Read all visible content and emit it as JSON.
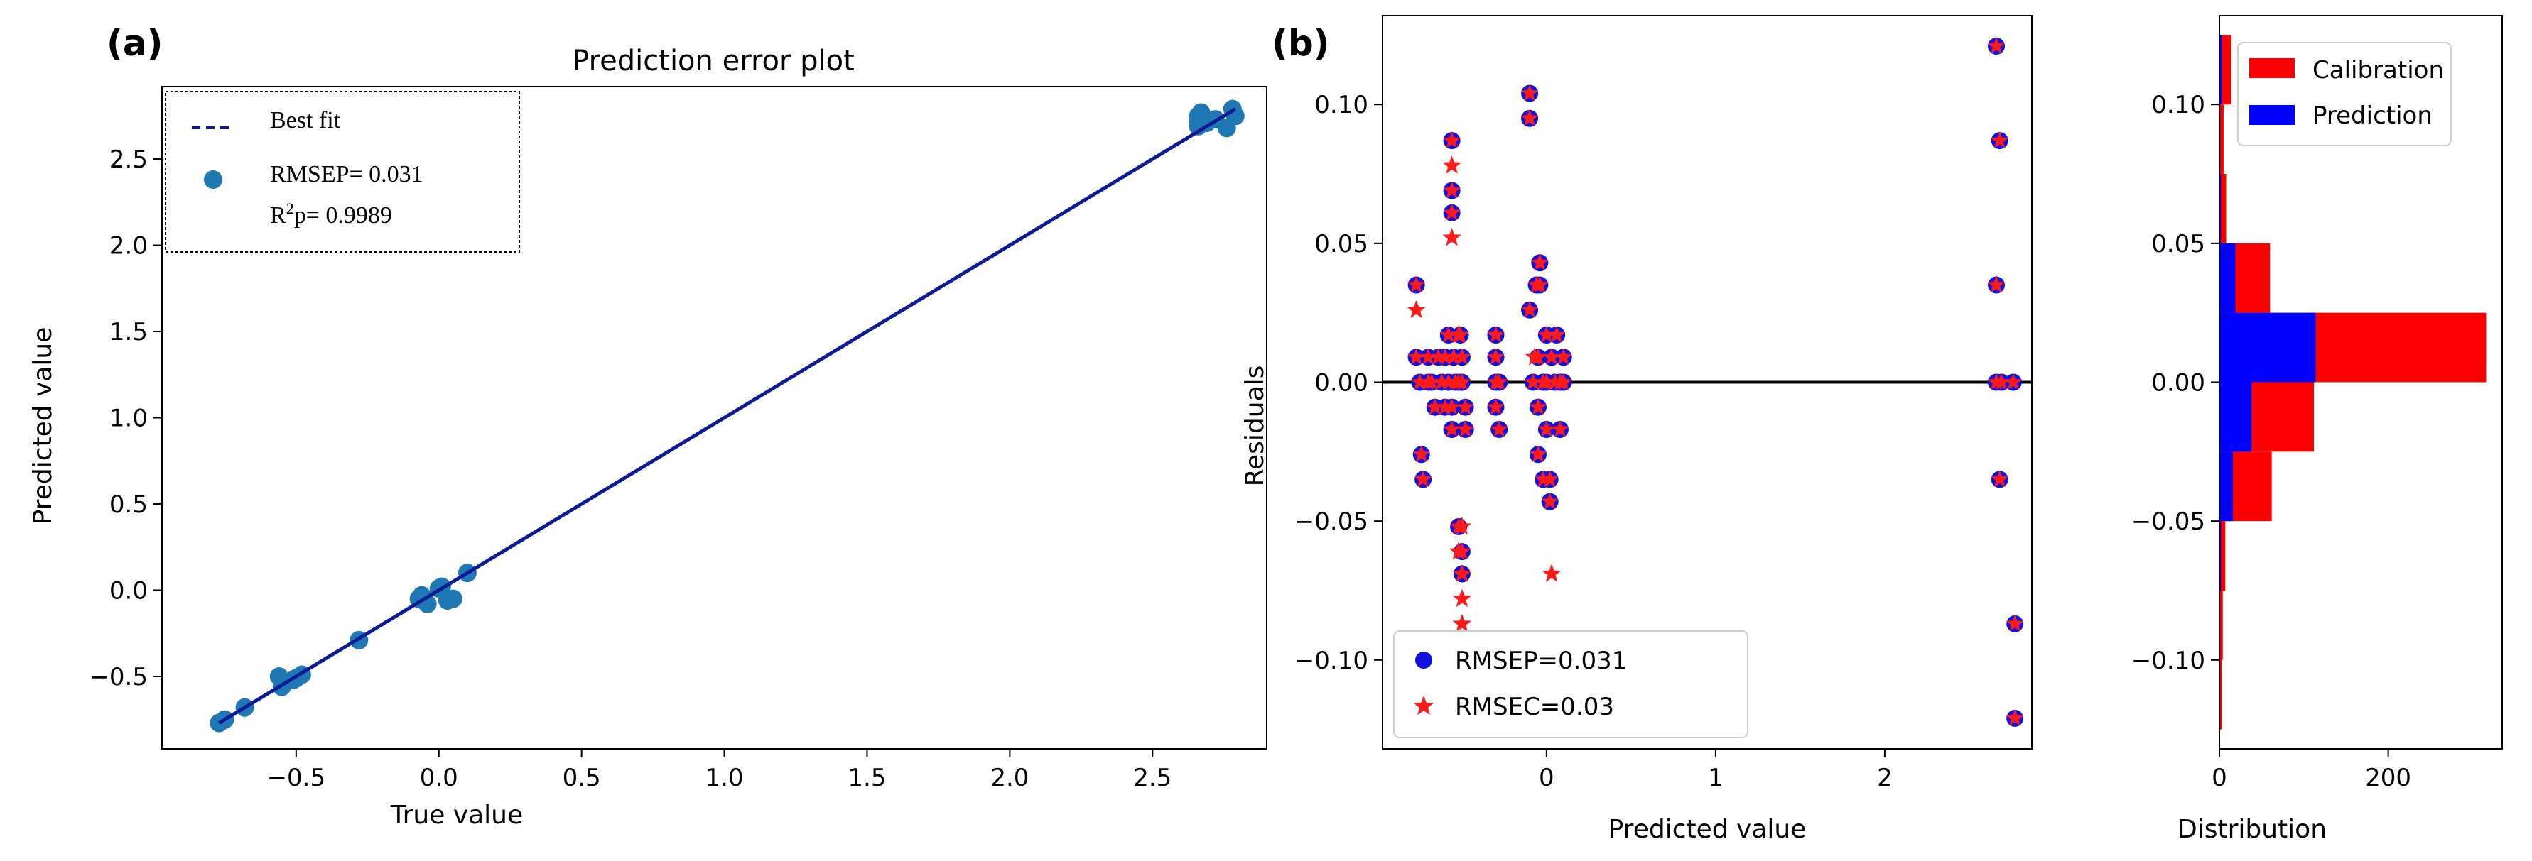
{
  "colors": {
    "fit_line": "#0d1a96",
    "scatter_a": "#1f77b4",
    "circle_b": "#1010e0",
    "star_b": "#ff1a1a",
    "calibration": "#ff0000",
    "prediction": "#0000ff"
  },
  "chart_data": [
    {
      "id": "a",
      "panel_label": "(a)",
      "type": "scatter",
      "title": "Prediction error plot",
      "xlabel": "True value",
      "ylabel": "Predicted value",
      "xlim": [
        -0.97,
        2.9
      ],
      "ylim": [
        -0.92,
        2.92
      ],
      "xticks": [
        -0.5,
        0.0,
        0.5,
        1.0,
        1.5,
        2.0,
        2.5
      ],
      "xtick_labels": [
        "−0.5",
        "0.0",
        "0.5",
        "1.0",
        "1.5",
        "2.0",
        "2.5"
      ],
      "yticks": [
        -0.5,
        0.0,
        0.5,
        1.0,
        1.5,
        2.0,
        2.5
      ],
      "ytick_labels": [
        "−0.5",
        "0.0",
        "0.5",
        "1.0",
        "1.5",
        "2.0",
        "2.5"
      ],
      "legend": {
        "position": "top-left",
        "best_fit": "Best fit",
        "rmsep": "RMSEP= 0.031",
        "r2p_prefix": "R",
        "r2p_sup": "2",
        "r2p_suffix": "p= 0.9989"
      },
      "best_fit": {
        "x": [
          -0.77,
          2.79
        ],
        "y": [
          -0.77,
          2.79
        ]
      },
      "points": {
        "x": [
          -0.77,
          -0.75,
          -0.68,
          -0.56,
          -0.54,
          -0.5,
          -0.48,
          -0.55,
          -0.51,
          -0.28,
          -0.07,
          -0.04,
          -0.06,
          0.0,
          0.01,
          0.03,
          0.05,
          0.1,
          2.66,
          2.66,
          2.67,
          2.69,
          2.72,
          2.76,
          2.78,
          2.79,
          2.66
        ],
        "y": [
          -0.77,
          -0.75,
          -0.68,
          -0.5,
          -0.53,
          -0.51,
          -0.49,
          -0.56,
          -0.52,
          -0.29,
          -0.05,
          -0.08,
          -0.03,
          0.01,
          0.02,
          -0.06,
          -0.05,
          0.1,
          2.75,
          2.69,
          2.77,
          2.71,
          2.73,
          2.68,
          2.79,
          2.75,
          2.72
        ]
      }
    },
    {
      "id": "b",
      "panel_label": "(b)",
      "type": "scatter",
      "title": "",
      "xlabel": "Predicted value",
      "ylabel": "Residuals",
      "xlim": [
        -0.97,
        2.87
      ],
      "ylim": [
        -0.132,
        0.132
      ],
      "xticks": [
        0,
        1,
        2
      ],
      "xtick_labels": [
        "0",
        "1",
        "2"
      ],
      "yticks": [
        -0.1,
        -0.05,
        0.0,
        0.05,
        0.1
      ],
      "ytick_labels": [
        "−0.10",
        "−0.05",
        "0.00",
        "0.05",
        "0.10"
      ],
      "zero_line": 0.0,
      "legend": {
        "position": "bottom-left",
        "prediction_label": "RMSEP=0.031",
        "calibration_label": "RMSEC=0.03"
      },
      "prediction_series": {
        "name": "RMSEP=0.031",
        "x": [
          -0.77,
          -0.77,
          -0.75,
          -0.74,
          -0.73,
          -0.7,
          -0.7,
          -0.68,
          -0.66,
          -0.64,
          -0.62,
          -0.6,
          -0.6,
          -0.58,
          -0.58,
          -0.56,
          -0.56,
          -0.56,
          -0.56,
          -0.56,
          -0.55,
          -0.54,
          -0.52,
          -0.52,
          -0.51,
          -0.5,
          -0.5,
          -0.5,
          -0.5,
          -0.48,
          -0.48,
          -0.3,
          -0.3,
          -0.3,
          -0.3,
          -0.28,
          -0.28,
          -0.1,
          -0.1,
          -0.1,
          -0.08,
          -0.06,
          -0.05,
          -0.05,
          -0.05,
          -0.04,
          -0.04,
          -0.02,
          -0.02,
          0.0,
          0.0,
          0.0,
          0.02,
          0.02,
          0.03,
          0.05,
          0.06,
          0.08,
          0.08,
          0.1,
          0.1,
          2.66,
          2.66,
          2.66,
          2.68,
          2.68,
          2.69,
          2.76,
          2.77,
          2.77
        ],
        "y": [
          0.035,
          0.009,
          0.0,
          -0.026,
          -0.035,
          0.009,
          0.0,
          0.0,
          -0.009,
          0.009,
          0.0,
          -0.009,
          0.009,
          0.0,
          0.017,
          0.087,
          0.069,
          0.061,
          -0.009,
          -0.017,
          0.009,
          0.0,
          -0.052,
          0.0,
          0.017,
          -0.061,
          -0.069,
          0.009,
          0.0,
          -0.009,
          -0.017,
          0.017,
          0.009,
          0.0,
          -0.009,
          -0.017,
          0.0,
          0.104,
          0.095,
          0.026,
          0.0,
          0.035,
          0.009,
          -0.009,
          -0.026,
          0.043,
          0.035,
          0.0,
          -0.035,
          0.0,
          0.017,
          -0.017,
          -0.043,
          -0.035,
          0.009,
          0.0,
          0.017,
          -0.017,
          0.0,
          0.009,
          0.0,
          0.121,
          0.035,
          0.0,
          -0.035,
          0.087,
          0.0,
          0.0,
          -0.087,
          -0.121
        ]
      },
      "calibration_series": {
        "name": "RMSEC=0.03",
        "x": [
          -0.77,
          -0.56,
          -0.56,
          -0.52,
          -0.52,
          -0.5,
          -0.5,
          -0.5,
          -0.5,
          -0.07,
          0.03
        ],
        "y": [
          0.026,
          0.078,
          0.052,
          0.017,
          -0.061,
          -0.069,
          -0.078,
          -0.087,
          -0.052,
          0.009,
          -0.069
        ]
      }
    },
    {
      "id": "b-hist",
      "type": "bar",
      "orientation": "horizontal",
      "xlabel": "Distribution",
      "ylabel": "",
      "xlim": [
        0,
        335
      ],
      "ylim": [
        -0.132,
        0.132
      ],
      "xticks": [
        0,
        200
      ],
      "xtick_labels": [
        "0",
        "200"
      ],
      "yticks": [
        -0.1,
        -0.05,
        0.0,
        0.05,
        0.1
      ],
      "ytick_labels": [
        "−0.10",
        "−0.05",
        "0.00",
        "0.05",
        "0.10"
      ],
      "bin_width": 0.025,
      "bin_starts": [
        -0.125,
        -0.1,
        -0.075,
        -0.05,
        -0.025,
        0.0,
        0.025,
        0.05,
        0.075,
        0.1
      ],
      "legend": {
        "position": "top-right",
        "entries": [
          "Calibration",
          "Prediction"
        ]
      },
      "series": [
        {
          "name": "Calibration",
          "values": [
            3,
            4,
            7,
            62,
            112,
            316,
            60,
            8,
            5,
            14
          ]
        },
        {
          "name": "Prediction",
          "values": [
            1,
            1,
            2,
            16,
            38,
            114,
            19,
            2,
            1,
            3
          ]
        }
      ]
    }
  ]
}
